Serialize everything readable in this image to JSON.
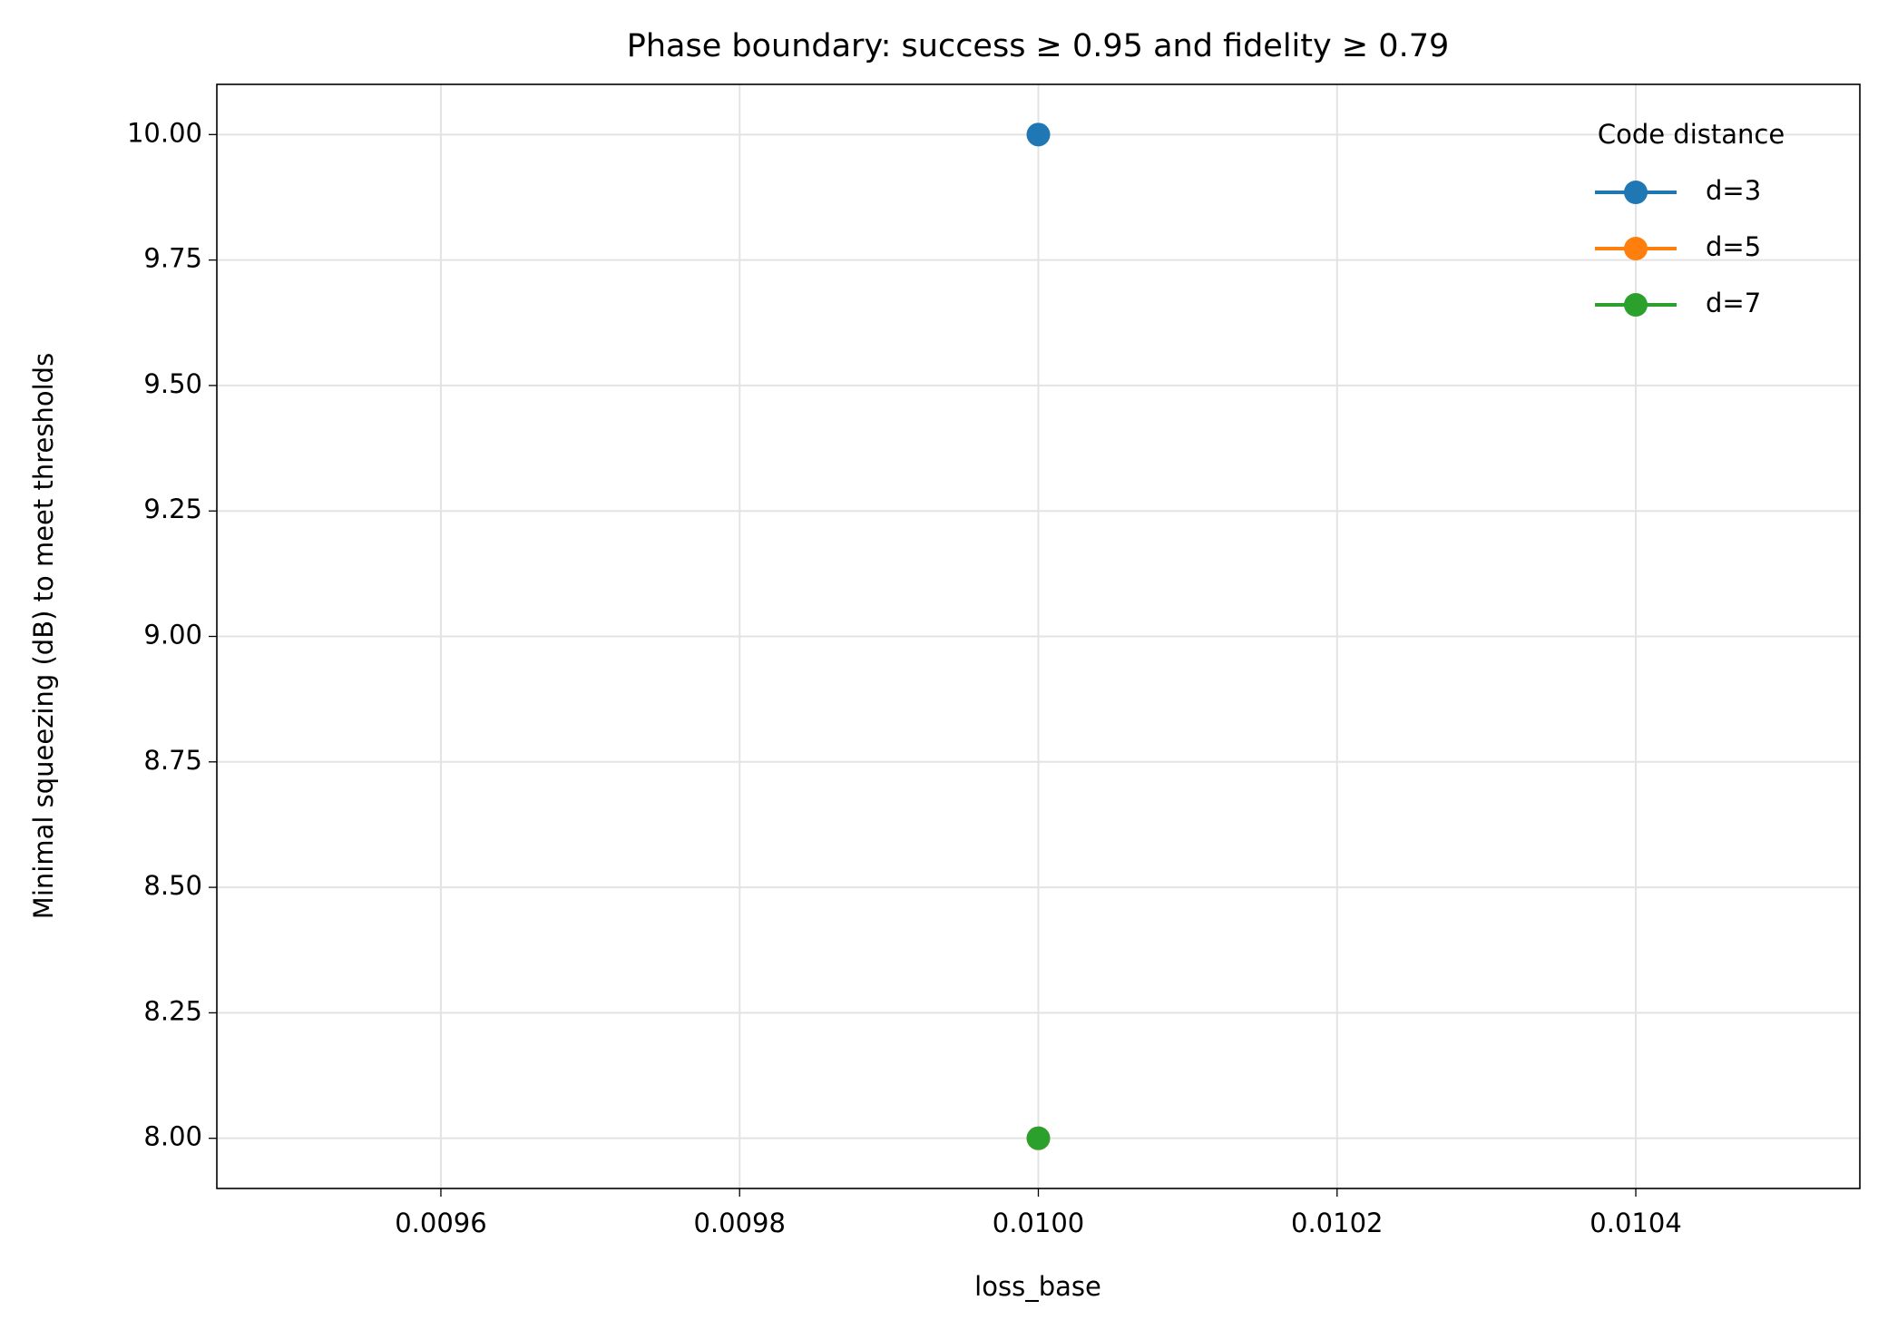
{
  "chart_data": {
    "type": "line",
    "title": "Phase boundary: success ≥ 0.95 and fidelity ≥ 0.79",
    "x_label": "loss_base",
    "y_label": "Minimal squeezing (dB) to meet thresholds",
    "legend_title": "Code distance",
    "legend_position": "upper right",
    "grid": true,
    "x": [
      0.01
    ],
    "series": [
      {
        "name": "d=3",
        "color": "#1f77b4",
        "values": [
          10
        ]
      },
      {
        "name": "d=5",
        "color": "#ff7f0e",
        "values": [
          8
        ]
      },
      {
        "name": "d=7",
        "color": "#2ca02c",
        "values": [
          8
        ]
      }
    ],
    "xlim": [
      0.00945,
      0.01055
    ],
    "xticks": [
      0.0096,
      0.0098,
      {
        "value": 0.01,
        "label": "0.0100"
      },
      0.0102,
      0.0104
    ],
    "ylim": [
      7.9,
      10.1
    ],
    "yticks": [
      {
        "value": 8,
        "label": "8.00"
      },
      8.25,
      {
        "value": 8.5,
        "label": "8.50"
      },
      8.75,
      {
        "value": 9,
        "label": "9.00"
      },
      9.25,
      {
        "value": 9.5,
        "label": "9.50"
      },
      9.75,
      {
        "value": 10,
        "label": "10.00"
      }
    ]
  }
}
